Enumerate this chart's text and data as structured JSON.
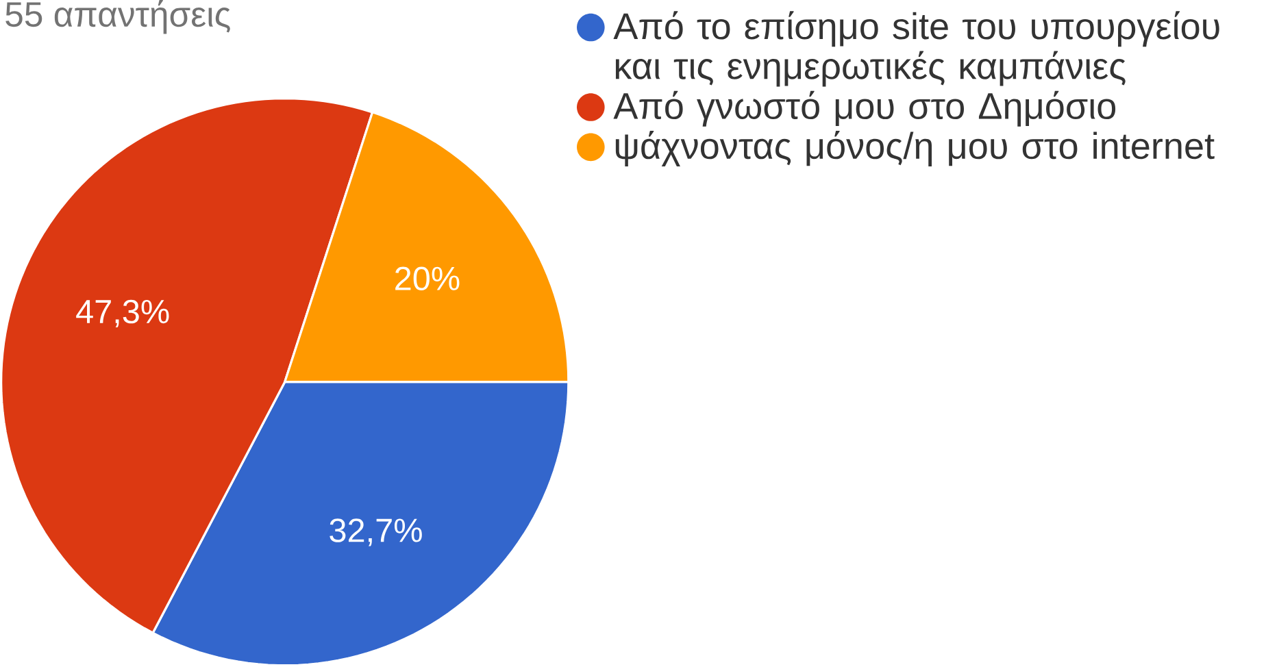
{
  "chart_data": {
    "type": "pie",
    "title": "55 απαντήσεις",
    "categories": [
      "Από το επίσημο site του υπουργείου και τις ενημερωτικές καμπάνιες",
      "Από γνωστό μου στο Δημόσιο",
      "ψάχνοντας μόνος/η μου στο internet"
    ],
    "values": [
      32.7,
      47.3,
      20
    ],
    "colors": [
      "#3366cc",
      "#dc3912",
      "#ff9900"
    ],
    "value_labels": [
      "32,7%",
      "47,3%",
      "20%"
    ],
    "legend": "top right"
  }
}
